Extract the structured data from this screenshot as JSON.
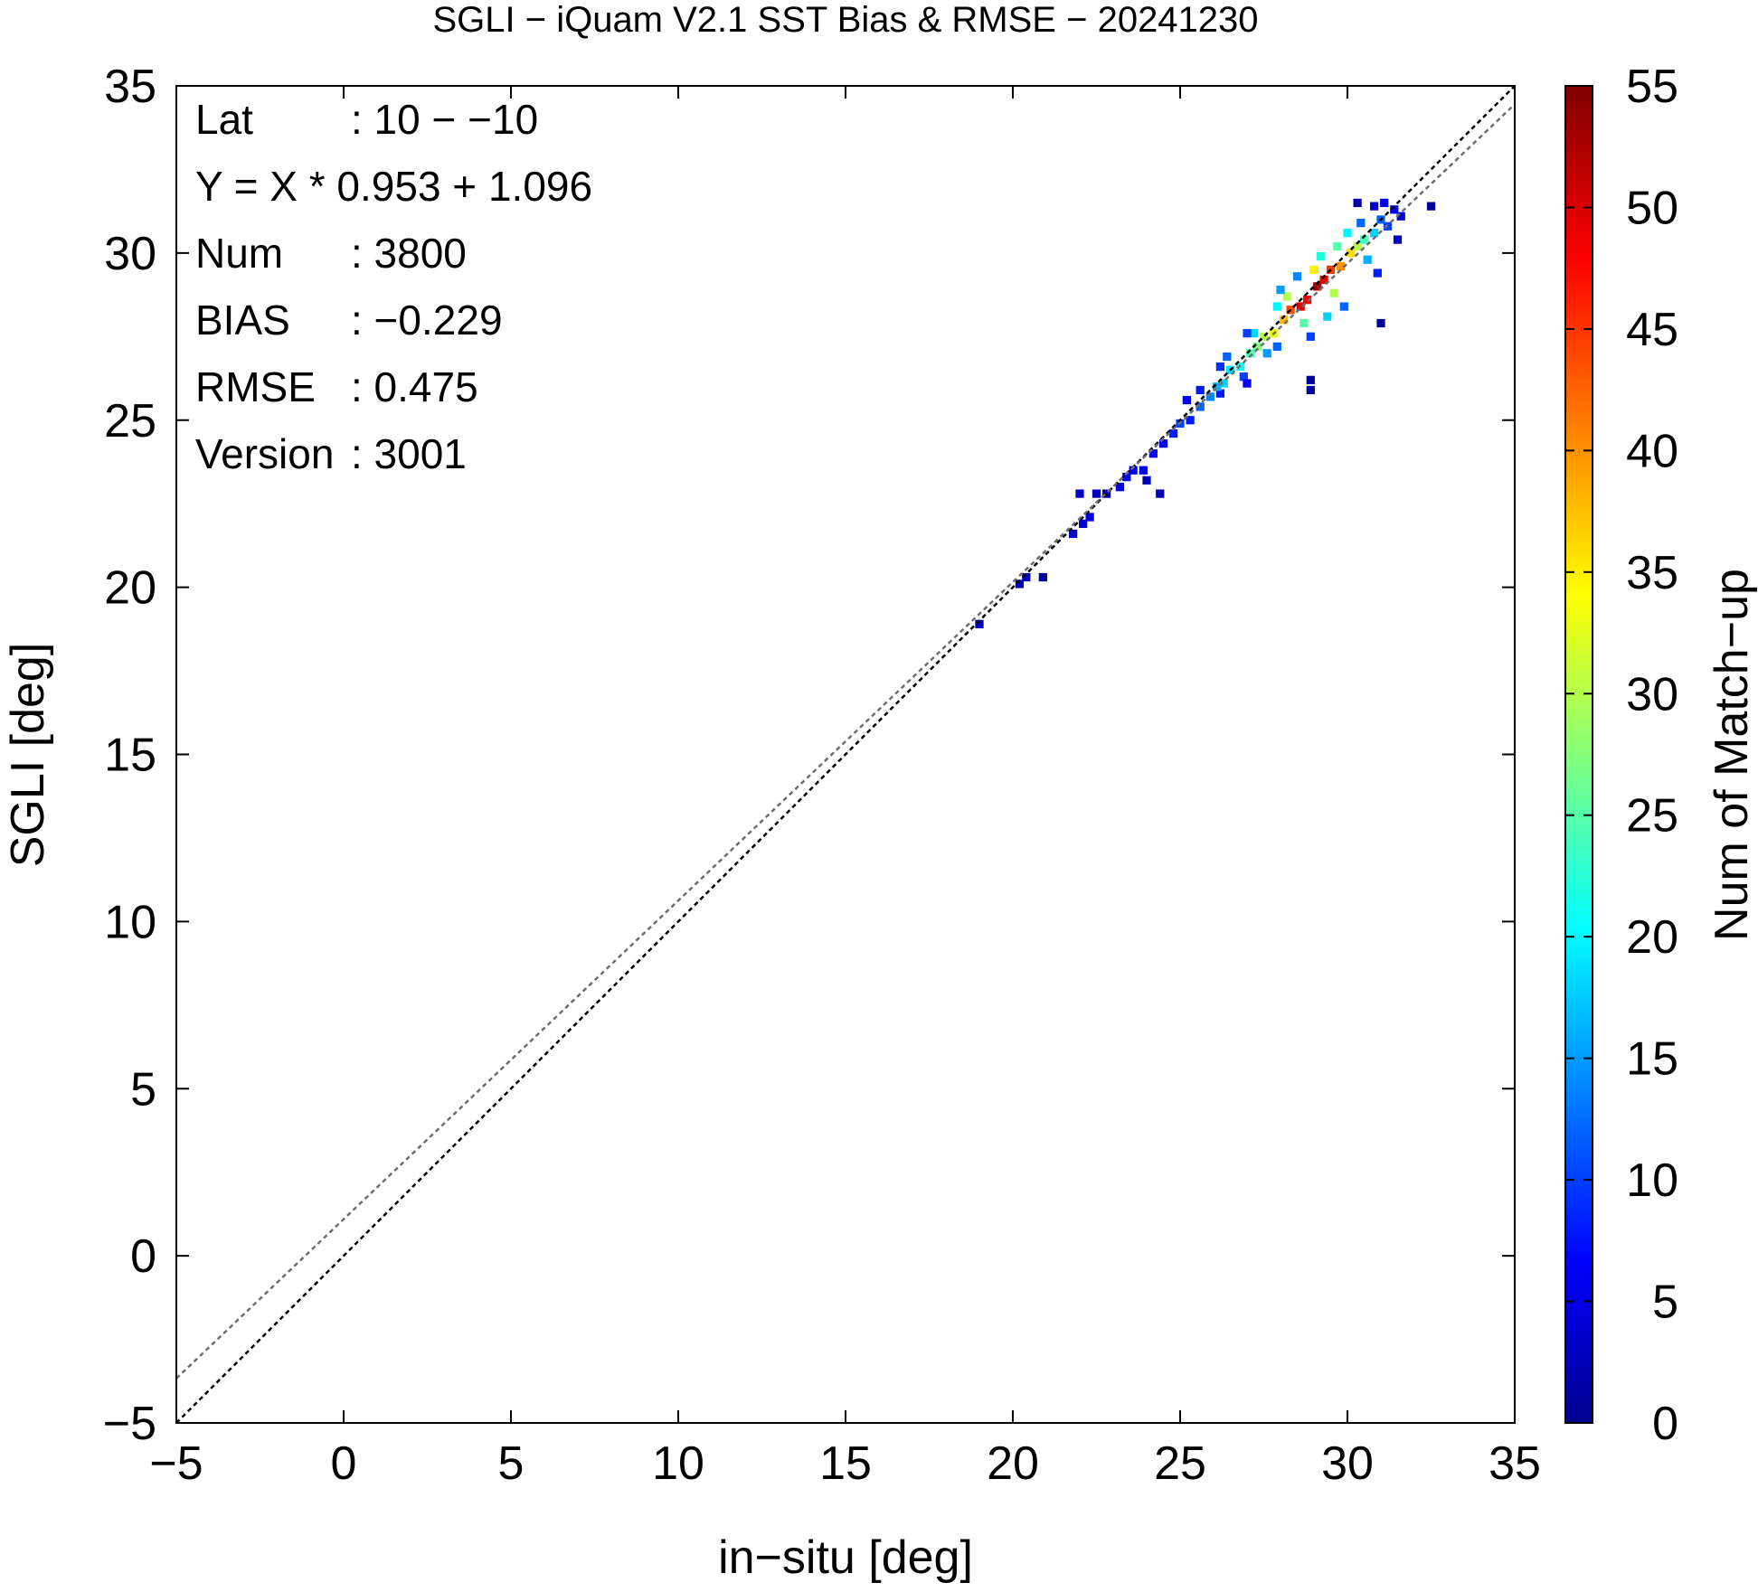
{
  "chart_data": {
    "type": "heatmap",
    "title": "SGLI − iQuam V2.1 SST Bias & RMSE  − 20241230",
    "xlabel": "in−situ [deg]",
    "ylabel": "SGLI [deg]",
    "xlim": [
      -5,
      35
    ],
    "ylim": [
      -5,
      35
    ],
    "x_ticks": [
      -5,
      0,
      5,
      10,
      15,
      20,
      25,
      30,
      35
    ],
    "y_ticks": [
      -5,
      0,
      5,
      10,
      15,
      20,
      25,
      30,
      35
    ],
    "x_tick_labels": [
      "−5",
      "0",
      "5",
      "10",
      "15",
      "20",
      "25",
      "30",
      "35"
    ],
    "y_tick_labels": [
      "−5",
      "0",
      "5",
      "10",
      "15",
      "20",
      "25",
      "30",
      "35"
    ],
    "grid": false,
    "stats": [
      {
        "label": "Lat",
        "value": ": 10 − −10"
      },
      {
        "label": "Y = X * 0.953 + 1.096",
        "value": ""
      },
      {
        "label": "Num",
        "value": ": 3800"
      },
      {
        "label": "BIAS",
        "value": ": −0.229"
      },
      {
        "label": "RMSE",
        "value": ": 0.475"
      },
      {
        "label": "Version",
        "value": ": 3001"
      }
    ],
    "lines": [
      {
        "kind": "one-to-one",
        "slope": 1.0,
        "intercept": 0.0,
        "color": "#000000",
        "style": "dotted"
      },
      {
        "kind": "regression",
        "slope": 0.953,
        "intercept": 1.096,
        "color": "#6e6e6e",
        "style": "dotted"
      }
    ],
    "colorbar": {
      "label": "Num of Match−up",
      "range": [
        0,
        55
      ],
      "ticks": [
        0,
        5,
        10,
        15,
        20,
        25,
        30,
        35,
        40,
        45,
        50,
        55
      ],
      "tick_labels": [
        "0",
        "5",
        "10",
        "15",
        "20",
        "25",
        "30",
        "35",
        "40",
        "45",
        "50",
        "55"
      ],
      "colors": [
        "#00008f",
        "#0000ff",
        "#00ffff",
        "#ffff00",
        "#ff0000",
        "#800000"
      ]
    },
    "bin_size": 0.25,
    "cells": [
      [
        19.0,
        18.9,
        2
      ],
      [
        20.2,
        20.1,
        2
      ],
      [
        20.4,
        20.3,
        3
      ],
      [
        20.9,
        20.3,
        1
      ],
      [
        21.8,
        21.6,
        3
      ],
      [
        22.1,
        21.9,
        4
      ],
      [
        22.3,
        22.1,
        5
      ],
      [
        22.0,
        22.8,
        3
      ],
      [
        22.5,
        22.8,
        3
      ],
      [
        22.8,
        22.8,
        2
      ],
      [
        23.2,
        23.0,
        4
      ],
      [
        23.4,
        23.3,
        6
      ],
      [
        23.6,
        23.5,
        6
      ],
      [
        23.9,
        23.5,
        5
      ],
      [
        24.2,
        24.0,
        7
      ],
      [
        24.5,
        24.3,
        6
      ],
      [
        24.0,
        23.2,
        2
      ],
      [
        24.4,
        22.8,
        2
      ],
      [
        24.8,
        24.6,
        8
      ],
      [
        25.0,
        24.9,
        10
      ],
      [
        25.3,
        25.0,
        8
      ],
      [
        25.6,
        25.4,
        12
      ],
      [
        25.9,
        25.7,
        14
      ],
      [
        25.6,
        25.9,
        8
      ],
      [
        25.2,
        25.6,
        6
      ],
      [
        26.2,
        25.8,
        8
      ],
      [
        26.1,
        26.0,
        16
      ],
      [
        26.3,
        26.1,
        18
      ],
      [
        26.5,
        26.5,
        19
      ],
      [
        26.8,
        26.6,
        21
      ],
      [
        26.4,
        26.9,
        12
      ],
      [
        26.9,
        26.3,
        10
      ],
      [
        27.0,
        26.1,
        6
      ],
      [
        26.2,
        26.6,
        9
      ],
      [
        27.1,
        27.0,
        24
      ],
      [
        27.3,
        27.2,
        27
      ],
      [
        27.5,
        27.5,
        30
      ],
      [
        27.8,
        27.6,
        33
      ],
      [
        27.2,
        27.6,
        18
      ],
      [
        27.6,
        27.0,
        15
      ],
      [
        27.9,
        27.2,
        12
      ],
      [
        27.0,
        27.6,
        10
      ],
      [
        28.1,
        28.0,
        38
      ],
      [
        28.3,
        28.3,
        44
      ],
      [
        28.6,
        28.4,
        50
      ],
      [
        28.8,
        28.6,
        48
      ],
      [
        28.2,
        28.7,
        30
      ],
      [
        28.7,
        27.9,
        25
      ],
      [
        28.9,
        27.5,
        10
      ],
      [
        27.9,
        28.4,
        20
      ],
      [
        29.1,
        29.0,
        53
      ],
      [
        29.3,
        29.2,
        49
      ],
      [
        29.5,
        29.5,
        45
      ],
      [
        29.8,
        29.6,
        40
      ],
      [
        29.0,
        29.5,
        35
      ],
      [
        29.6,
        28.8,
        30
      ],
      [
        29.9,
        28.4,
        12
      ],
      [
        29.2,
        29.9,
        22
      ],
      [
        30.1,
        30.0,
        36
      ],
      [
        30.3,
        30.2,
        30
      ],
      [
        30.5,
        30.4,
        24
      ],
      [
        30.8,
        30.6,
        18
      ],
      [
        30.0,
        30.6,
        20
      ],
      [
        30.6,
        29.8,
        16
      ],
      [
        30.9,
        29.4,
        8
      ],
      [
        30.4,
        30.9,
        12
      ],
      [
        31.0,
        31.0,
        12
      ],
      [
        31.2,
        30.8,
        10
      ],
      [
        31.4,
        31.3,
        6
      ],
      [
        31.6,
        31.1,
        4
      ],
      [
        31.1,
        31.5,
        5
      ],
      [
        30.8,
        31.4,
        4
      ],
      [
        31.5,
        30.4,
        3
      ],
      [
        32.5,
        31.4,
        1
      ],
      [
        28.9,
        26.2,
        1
      ],
      [
        28.9,
        25.9,
        1
      ],
      [
        31.0,
        27.9,
        1
      ],
      [
        30.3,
        31.5,
        2
      ],
      [
        28.5,
        29.3,
        14
      ],
      [
        29.4,
        28.1,
        18
      ],
      [
        28.0,
        28.9,
        15
      ],
      [
        29.7,
        30.2,
        25
      ]
    ]
  }
}
